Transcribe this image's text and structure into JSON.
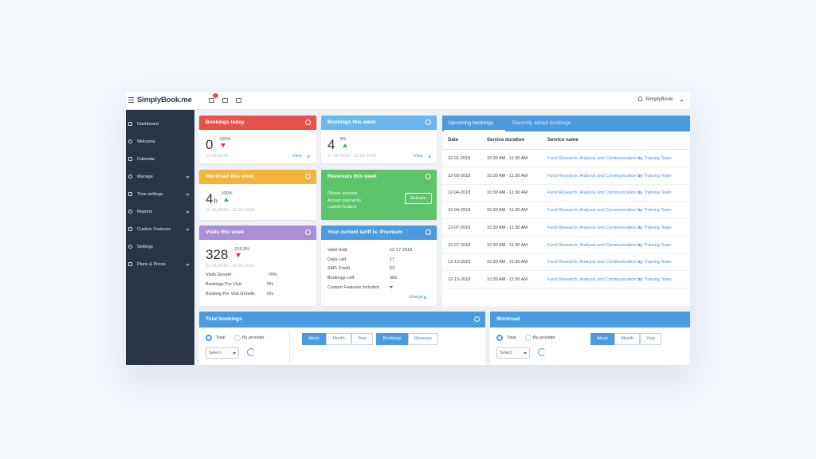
{
  "header": {
    "logo": "SimplyBook.me",
    "user": "SimplyBook"
  },
  "sidebar": [
    "Dashboard",
    "Welcome",
    "Calendar",
    "Manage",
    "Time settings",
    "Reports",
    "Custom Features",
    "Settings",
    "Plans & Prices"
  ],
  "cards": {
    "bookings_today": {
      "title": "Bookings today",
      "value": "0",
      "change": "-100%",
      "date": "11-29-2018",
      "link": "View"
    },
    "bookings_week": {
      "title": "Bookings this week",
      "value": "4",
      "change": "0%",
      "date": "11-26-2018 - 12-02-2018",
      "link": "View"
    },
    "workload_week": {
      "title": "Workload this week",
      "value": "4",
      "unit": "h",
      "change": "100%",
      "date": "11-26-2018 - 12-02-2018"
    },
    "revenues_week": {
      "title": "Revenues this week",
      "lines": [
        "Please activate",
        "Accept payments",
        "custom feature"
      ],
      "button": "Activate"
    },
    "visits_week": {
      "title": "Visits this week",
      "value": "328",
      "change": "-315.9%",
      "date": "11-26-2018 - 12-02-2018",
      "rows": [
        [
          "Visits Growth:",
          "-76%"
        ],
        [
          "Bookings Per Visit:",
          "0%"
        ],
        [
          "Booking Per Visit Growth:",
          "0%"
        ]
      ]
    },
    "tariff": {
      "title": "Your current tariff is: Premium",
      "rows": [
        [
          "Valid Until:",
          "12-17-2018"
        ],
        [
          "Days Left",
          "17"
        ],
        [
          "SMS Credit",
          "53"
        ],
        [
          "Bookings Left",
          "355"
        ],
        [
          "Custom Features Included"
        ]
      ],
      "link": "change"
    }
  },
  "bookings": {
    "tabs": [
      "Upcoming bookings",
      "Recently added bookings"
    ],
    "columns": [
      "Date",
      "Service duration",
      "Service name"
    ],
    "connector": "by",
    "rows": [
      [
        "12-01-2018",
        "10:30 AM - 11:30 AM",
        "Fund Research, Analysis and Communication",
        "Training Team"
      ],
      [
        "12-03-2018",
        "10:30 AM - 11:30 AM",
        "Fund Research, Analysis and Communication",
        "Training Team"
      ],
      [
        "12-04-2018",
        "10:30 AM - 11:30 AM",
        "Fund Research, Analysis and Communication",
        "Training Team"
      ],
      [
        "12-04-2018",
        "10:30 AM - 11:30 AM",
        "Fund Research, Analysis and Communication",
        "Training Team"
      ],
      [
        "12-07-2018",
        "10:30 AM - 11:30 AM",
        "Fund Research, Analysis and Communication",
        "Training Team"
      ],
      [
        "12-07-2018",
        "10:30 AM - 11:30 AM",
        "Fund Research, Analysis and Communication",
        "Training Team"
      ],
      [
        "12-13-2018",
        "10:30 AM - 11:30 AM",
        "Fund Research, Analysis and Communication",
        "Training Team"
      ],
      [
        "12-13-2018",
        "10:30 AM - 11:30 AM",
        "Fund Research, Analysis and Communication",
        "Training Team"
      ]
    ]
  },
  "total_bookings": {
    "title": "Total bookings",
    "radios": [
      "Total",
      "By provider"
    ],
    "select": "Select",
    "periods": [
      "Week",
      "Month",
      "Year"
    ],
    "metrics": [
      "Bookings",
      "Revenue"
    ]
  },
  "workload": {
    "title": "Workload",
    "radios": [
      "Total",
      "By provider"
    ],
    "select": "Select",
    "periods": [
      "Week",
      "Month",
      "Year"
    ]
  }
}
